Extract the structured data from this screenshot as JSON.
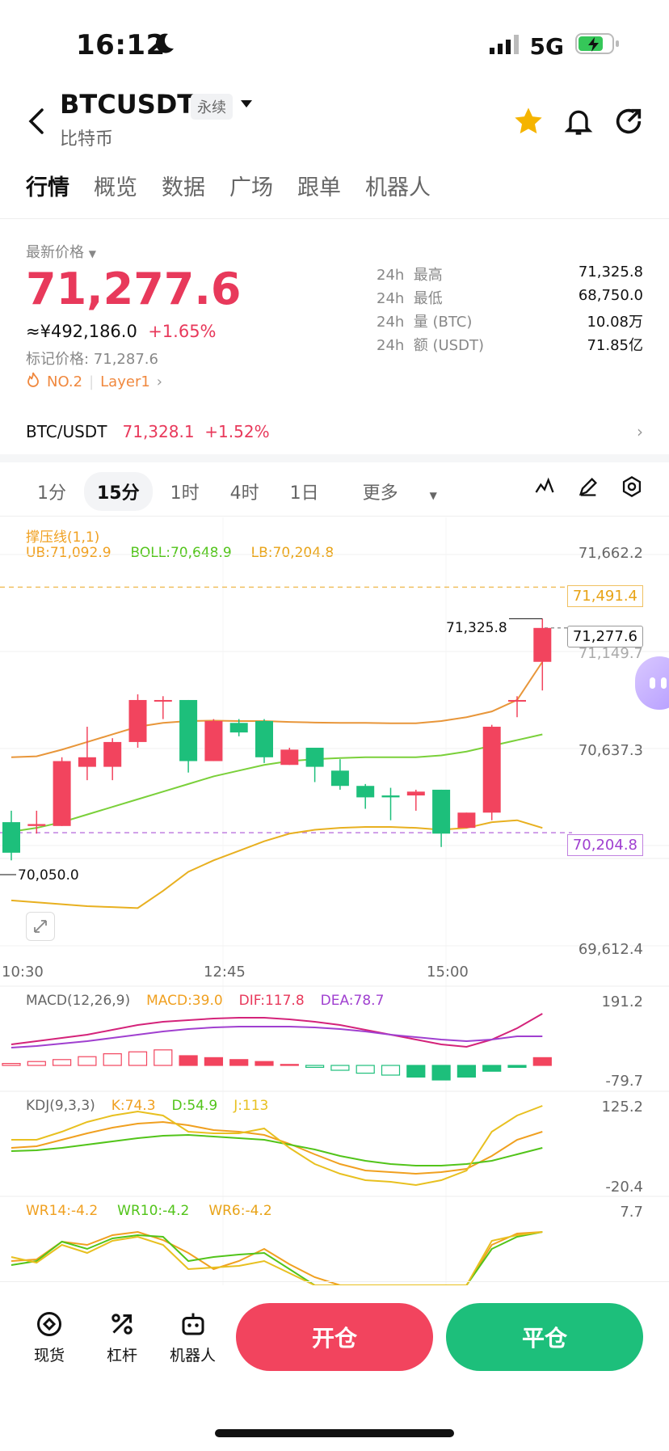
{
  "status": {
    "time": "16:12",
    "network": "5G"
  },
  "header": {
    "pair": "BTCUSDT",
    "badge": "永续",
    "subname": "比特币"
  },
  "tabs": [
    "行情",
    "概览",
    "数据",
    "广场",
    "跟单",
    "机器人"
  ],
  "ticker": {
    "last_label": "最新价格",
    "last_price": "71,277.6",
    "cny": "≈¥492,186.0",
    "change": "+1.65%",
    "mark_label": "标记价格: 71,287.6",
    "rank": "NO.2",
    "category": "Layer1",
    "stats": [
      {
        "period": "24h",
        "label": "最高",
        "value": "71,325.8"
      },
      {
        "period": "24h",
        "label": "最低",
        "value": "68,750.0"
      },
      {
        "period": "24h",
        "label": "量 (BTC)",
        "value": "10.08万"
      },
      {
        "period": "24h",
        "label": "额 (USDT)",
        "value": "71.85亿"
      }
    ]
  },
  "spot": {
    "pair": "BTC/USDT",
    "price": "71,328.1",
    "change": "+1.52%"
  },
  "intervals": [
    "1分",
    "15分",
    "1时",
    "4时",
    "1日",
    "更多"
  ],
  "indicators": {
    "main_title": "撑压线(1,1)",
    "ub": "UB:71,092.9",
    "boll": "BOLL:70,648.9",
    "lb": "LB:70,204.8",
    "macd_title": "MACD(12,26,9)",
    "macd": "MACD:39.0",
    "dif": "DIF:117.8",
    "dea": "DEA:78.7",
    "kdj_title": "KDJ(9,3,3)",
    "k": "K:74.3",
    "d": "D:54.9",
    "j": "J:113",
    "wr14": "WR14:-4.2",
    "wr10": "WR10:-4.2",
    "wr6": "WR6:-4.2"
  },
  "axis": {
    "p1": "71,662.2",
    "resist": "71,491.4",
    "current": "71,277.6",
    "p2": "71,149.7",
    "p3": "70,637.3",
    "support": "70,204.8",
    "p4": "69,612.4",
    "high_mark": "71,325.8",
    "low_mark": "70,050.0",
    "t1": "10:30",
    "t2": "12:45",
    "t3": "15:00",
    "macd_top": "191.2",
    "macd_bot": "-79.7",
    "kdj_top": "125.2",
    "kdj_bot": "-20.4",
    "wr_top": "7.7"
  },
  "chart_data": {
    "type": "candlestick",
    "candles": [
      {
        "o": 70260,
        "c": 70100,
        "h": 70320,
        "l": 70060
      },
      {
        "o": 70240,
        "c": 70250,
        "h": 70320,
        "l": 70200
      },
      {
        "o": 70240,
        "c": 70580,
        "h": 70600,
        "l": 70240
      },
      {
        "o": 70550,
        "c": 70600,
        "h": 70760,
        "l": 70480
      },
      {
        "o": 70550,
        "c": 70680,
        "h": 70700,
        "l": 70480
      },
      {
        "o": 70680,
        "c": 70900,
        "h": 70930,
        "l": 70650
      },
      {
        "o": 70900,
        "c": 70900,
        "h": 70920,
        "l": 70800
      },
      {
        "o": 70900,
        "c": 70580,
        "h": 70900,
        "l": 70520
      },
      {
        "o": 70580,
        "c": 70790,
        "h": 70800,
        "l": 70580
      },
      {
        "o": 70780,
        "c": 70730,
        "h": 70800,
        "l": 70710
      },
      {
        "o": 70790,
        "c": 70600,
        "h": 70800,
        "l": 70570
      },
      {
        "o": 70560,
        "c": 70640,
        "h": 70650,
        "l": 70560
      },
      {
        "o": 70650,
        "c": 70550,
        "h": 70650,
        "l": 70470
      },
      {
        "o": 70530,
        "c": 70450,
        "h": 70590,
        "l": 70430
      },
      {
        "o": 70450,
        "c": 70390,
        "h": 70460,
        "l": 70330
      },
      {
        "o": 70400,
        "c": 70390,
        "h": 70440,
        "l": 70270
      },
      {
        "o": 70400,
        "c": 70420,
        "h": 70430,
        "l": 70320
      },
      {
        "o": 70430,
        "c": 70200,
        "h": 70430,
        "l": 70130
      },
      {
        "o": 70230,
        "c": 70310,
        "h": 70310,
        "l": 70230
      },
      {
        "o": 70310,
        "c": 70760,
        "h": 70770,
        "l": 70270
      },
      {
        "o": 70900,
        "c": 70900,
        "h": 70920,
        "l": 70810
      },
      {
        "o": 71100,
        "c": 71277.6,
        "h": 71325.8,
        "l": 70950
      }
    ]
  },
  "bottom": {
    "spot": "现货",
    "leverage": "杠杆",
    "bot": "机器人",
    "open": "开仓",
    "close": "平仓"
  }
}
